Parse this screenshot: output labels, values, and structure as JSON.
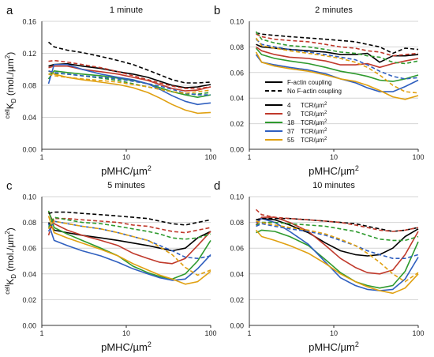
{
  "figure": {
    "y_label_super": "cell",
    "y_label_main": "K",
    "y_label_sub": "D",
    "y_label_units": " (mol./µm",
    "y_label_exp": "2",
    "y_label_close": ")",
    "x_label_main": "pMHC/µm",
    "x_label_exp": "2"
  },
  "legend": {
    "coupling": [
      {
        "label": "F-actin coupling",
        "style": "solid"
      },
      {
        "label": "No F-actin coupling",
        "style": "dashed"
      }
    ],
    "tcr": [
      {
        "value": "4",
        "color": "#000000"
      },
      {
        "value": "9",
        "color": "#c0392b"
      },
      {
        "value": "18",
        "color": "#2e9a2e"
      },
      {
        "value": "37",
        "color": "#2f5fbf"
      },
      {
        "value": "55",
        "color": "#e0a010"
      }
    ],
    "tcr_unit": "TCR/µm",
    "tcr_unit_exp": "2"
  },
  "chart_data": [
    {
      "type": "line",
      "letter": "a",
      "title": "1 minute",
      "xlim": [
        1,
        100
      ],
      "xscale": "log",
      "ylim": [
        0,
        0.16
      ],
      "xticks": [
        "1",
        "10",
        "100"
      ],
      "yticks": [
        "0.00",
        "0.04",
        "0.08",
        "0.12",
        "0.16"
      ],
      "x": [
        1.2,
        1.4,
        2,
        3,
        5,
        8,
        12,
        18,
        25,
        35,
        50,
        70,
        100
      ],
      "series": [
        {
          "tcr": "4",
          "coupling": "F-actin",
          "values": [
            0.104,
            0.106,
            0.107,
            0.104,
            0.101,
            0.097,
            0.094,
            0.09,
            0.085,
            0.08,
            0.077,
            0.078,
            0.081
          ]
        },
        {
          "tcr": "9",
          "coupling": "F-actin",
          "values": [
            0.102,
            0.104,
            0.104,
            0.1,
            0.097,
            0.094,
            0.09,
            0.086,
            0.081,
            0.076,
            0.073,
            0.074,
            0.078
          ]
        },
        {
          "tcr": "18",
          "coupling": "F-actin",
          "values": [
            0.088,
            0.098,
            0.096,
            0.094,
            0.092,
            0.089,
            0.086,
            0.082,
            0.077,
            0.072,
            0.068,
            0.065,
            0.068
          ]
        },
        {
          "tcr": "37",
          "coupling": "F-actin",
          "values": [
            0.082,
            0.106,
            0.106,
            0.1,
            0.094,
            0.09,
            0.087,
            0.082,
            0.075,
            0.067,
            0.06,
            0.056,
            0.058
          ]
        },
        {
          "tcr": "55",
          "coupling": "F-actin",
          "values": [
            0.098,
            0.094,
            0.09,
            0.087,
            0.084,
            0.081,
            0.077,
            0.071,
            0.064,
            0.056,
            0.049,
            0.045,
            0.046
          ]
        },
        {
          "tcr": "4",
          "coupling": "none",
          "values": [
            0.134,
            0.128,
            0.124,
            0.121,
            0.116,
            0.111,
            0.106,
            0.099,
            0.093,
            0.087,
            0.083,
            0.083,
            0.084
          ]
        },
        {
          "tcr": "9",
          "coupling": "none",
          "values": [
            0.11,
            0.111,
            0.109,
            0.106,
            0.102,
            0.097,
            0.092,
            0.087,
            0.083,
            0.079,
            0.076,
            0.076,
            0.078
          ]
        },
        {
          "tcr": "18",
          "coupling": "none",
          "values": [
            0.094,
            0.095,
            0.094,
            0.092,
            0.089,
            0.086,
            0.082,
            0.078,
            0.075,
            0.072,
            0.069,
            0.069,
            0.071
          ]
        },
        {
          "tcr": "37",
          "coupling": "none",
          "values": [
            0.098,
            0.096,
            0.094,
            0.092,
            0.09,
            0.088,
            0.085,
            0.082,
            0.079,
            0.075,
            0.07,
            0.068,
            0.068
          ]
        },
        {
          "tcr": "55",
          "coupling": "none",
          "values": [
            0.094,
            0.092,
            0.09,
            0.088,
            0.086,
            0.084,
            0.081,
            0.078,
            0.075,
            0.072,
            0.07,
            0.072,
            0.074
          ]
        }
      ]
    },
    {
      "type": "line",
      "letter": "b",
      "title": "2 minutes",
      "xlim": [
        1,
        100
      ],
      "xscale": "log",
      "ylim": [
        0,
        0.1
      ],
      "xticks": [
        "1",
        "10",
        "100"
      ],
      "yticks": [
        "0.00",
        "0.02",
        "0.04",
        "0.06",
        "0.08",
        "0.10"
      ],
      "x": [
        1.2,
        1.4,
        2,
        3,
        5,
        8,
        12,
        18,
        25,
        35,
        50,
        70,
        100
      ],
      "series": [
        {
          "tcr": "4",
          "coupling": "F-actin",
          "values": [
            0.082,
            0.08,
            0.079,
            0.078,
            0.077,
            0.076,
            0.074,
            0.074,
            0.075,
            0.068,
            0.073,
            0.073,
            0.074
          ]
        },
        {
          "tcr": "9",
          "coupling": "F-actin",
          "values": [
            0.08,
            0.077,
            0.074,
            0.072,
            0.071,
            0.069,
            0.066,
            0.066,
            0.067,
            0.064,
            0.067,
            0.069,
            0.071
          ]
        },
        {
          "tcr": "18",
          "coupling": "F-actin",
          "values": [
            0.079,
            0.074,
            0.071,
            0.069,
            0.067,
            0.064,
            0.061,
            0.059,
            0.057,
            0.054,
            0.053,
            0.055,
            0.058
          ]
        },
        {
          "tcr": "37",
          "coupling": "F-actin",
          "values": [
            0.074,
            0.068,
            0.066,
            0.064,
            0.062,
            0.059,
            0.055,
            0.052,
            0.048,
            0.045,
            0.045,
            0.049,
            0.054
          ]
        },
        {
          "tcr": "55",
          "coupling": "F-actin",
          "values": [
            0.076,
            0.068,
            0.065,
            0.063,
            0.061,
            0.058,
            0.055,
            0.053,
            0.05,
            0.046,
            0.041,
            0.039,
            0.042
          ]
        },
        {
          "tcr": "4",
          "coupling": "none",
          "values": [
            0.091,
            0.09,
            0.089,
            0.088,
            0.087,
            0.086,
            0.085,
            0.084,
            0.082,
            0.08,
            0.075,
            0.079,
            0.078
          ]
        },
        {
          "tcr": "9",
          "coupling": "none",
          "values": [
            0.09,
            0.088,
            0.086,
            0.085,
            0.084,
            0.082,
            0.08,
            0.079,
            0.077,
            0.076,
            0.073,
            0.074,
            0.075
          ]
        },
        {
          "tcr": "18",
          "coupling": "none",
          "values": [
            0.092,
            0.086,
            0.083,
            0.081,
            0.08,
            0.078,
            0.076,
            0.075,
            0.073,
            0.072,
            0.068,
            0.067,
            0.069
          ]
        },
        {
          "tcr": "37",
          "coupling": "none",
          "values": [
            0.086,
            0.082,
            0.08,
            0.078,
            0.076,
            0.074,
            0.072,
            0.07,
            0.066,
            0.061,
            0.057,
            0.055,
            0.056
          ]
        },
        {
          "tcr": "55",
          "coupling": "none",
          "values": [
            0.087,
            0.081,
            0.079,
            0.077,
            0.075,
            0.073,
            0.071,
            0.068,
            0.064,
            0.058,
            0.05,
            0.045,
            0.044
          ]
        }
      ]
    },
    {
      "type": "line",
      "letter": "c",
      "title": "5 minutes",
      "xlim": [
        1,
        100
      ],
      "xscale": "log",
      "ylim": [
        0,
        0.1
      ],
      "xticks": [
        "1",
        "10",
        "100"
      ],
      "yticks": [
        "0.00",
        "0.02",
        "0.04",
        "0.06",
        "0.08",
        "0.10"
      ],
      "x": [
        1.2,
        1.4,
        2,
        3,
        5,
        8,
        12,
        18,
        25,
        35,
        50,
        70,
        100
      ],
      "series": [
        {
          "tcr": "4",
          "coupling": "F-actin",
          "values": [
            0.08,
            0.074,
            0.072,
            0.07,
            0.068,
            0.066,
            0.064,
            0.062,
            0.06,
            0.058,
            0.06,
            0.068,
            0.073
          ]
        },
        {
          "tcr": "9",
          "coupling": "F-actin",
          "values": [
            0.088,
            0.079,
            0.074,
            0.07,
            0.066,
            0.062,
            0.056,
            0.052,
            0.049,
            0.048,
            0.052,
            0.062,
            0.073
          ]
        },
        {
          "tcr": "18",
          "coupling": "F-actin",
          "values": [
            0.089,
            0.076,
            0.071,
            0.066,
            0.06,
            0.054,
            0.046,
            0.041,
            0.038,
            0.036,
            0.04,
            0.05,
            0.066
          ]
        },
        {
          "tcr": "37",
          "coupling": "F-actin",
          "values": [
            0.079,
            0.066,
            0.062,
            0.058,
            0.054,
            0.049,
            0.044,
            0.04,
            0.037,
            0.035,
            0.036,
            0.044,
            0.055
          ]
        },
        {
          "tcr": "55",
          "coupling": "F-actin",
          "values": [
            0.085,
            0.072,
            0.068,
            0.064,
            0.059,
            0.054,
            0.048,
            0.043,
            0.039,
            0.036,
            0.032,
            0.034,
            0.042
          ]
        },
        {
          "tcr": "4",
          "coupling": "none",
          "values": [
            0.087,
            0.088,
            0.088,
            0.087,
            0.086,
            0.085,
            0.084,
            0.083,
            0.081,
            0.079,
            0.078,
            0.08,
            0.082
          ]
        },
        {
          "tcr": "9",
          "coupling": "none",
          "values": [
            0.07,
            0.083,
            0.083,
            0.082,
            0.081,
            0.08,
            0.078,
            0.077,
            0.075,
            0.073,
            0.072,
            0.074,
            0.076
          ]
        },
        {
          "tcr": "18",
          "coupling": "none",
          "values": [
            0.076,
            0.084,
            0.082,
            0.08,
            0.079,
            0.077,
            0.075,
            0.073,
            0.071,
            0.068,
            0.067,
            0.068,
            0.071
          ]
        },
        {
          "tcr": "37",
          "coupling": "none",
          "values": [
            0.073,
            0.081,
            0.079,
            0.077,
            0.075,
            0.072,
            0.069,
            0.066,
            0.062,
            0.058,
            0.053,
            0.052,
            0.054
          ]
        },
        {
          "tcr": "55",
          "coupling": "none",
          "values": [
            0.075,
            0.081,
            0.079,
            0.077,
            0.075,
            0.072,
            0.069,
            0.066,
            0.061,
            0.055,
            0.045,
            0.039,
            0.043
          ]
        }
      ]
    },
    {
      "type": "line",
      "letter": "d",
      "title": "10 minutes",
      "xlim": [
        1,
        100
      ],
      "xscale": "log",
      "ylim": [
        0,
        0.1
      ],
      "xticks": [
        "1",
        "10",
        "100"
      ],
      "yticks": [
        "0.00",
        "0.02",
        "0.04",
        "0.06",
        "0.08",
        "0.10"
      ],
      "x": [
        1.2,
        1.4,
        2,
        3,
        5,
        8,
        12,
        18,
        25,
        35,
        50,
        70,
        100
      ],
      "series": [
        {
          "tcr": "4",
          "coupling": "F-actin",
          "values": [
            0.082,
            0.083,
            0.082,
            0.078,
            0.072,
            0.064,
            0.058,
            0.055,
            0.054,
            0.055,
            0.06,
            0.069,
            0.075
          ]
        },
        {
          "tcr": "9",
          "coupling": "F-actin",
          "values": [
            0.078,
            0.084,
            0.084,
            0.08,
            0.073,
            0.062,
            0.052,
            0.045,
            0.041,
            0.04,
            0.043,
            0.055,
            0.073
          ]
        },
        {
          "tcr": "18",
          "coupling": "F-actin",
          "values": [
            0.072,
            0.074,
            0.073,
            0.069,
            0.062,
            0.051,
            0.041,
            0.034,
            0.031,
            0.029,
            0.031,
            0.042,
            0.065
          ]
        },
        {
          "tcr": "37",
          "coupling": "F-actin",
          "values": [
            0.08,
            0.083,
            0.08,
            0.073,
            0.063,
            0.049,
            0.037,
            0.031,
            0.028,
            0.027,
            0.028,
            0.036,
            0.053
          ]
        },
        {
          "tcr": "55",
          "coupling": "F-actin",
          "values": [
            0.074,
            0.069,
            0.066,
            0.062,
            0.056,
            0.048,
            0.04,
            0.034,
            0.03,
            0.027,
            0.025,
            0.029,
            0.04
          ]
        },
        {
          "tcr": "4",
          "coupling": "none",
          "values": [
            0.082,
            0.083,
            0.083,
            0.083,
            0.082,
            0.081,
            0.08,
            0.079,
            0.077,
            0.075,
            0.073,
            0.074,
            0.076
          ]
        },
        {
          "tcr": "9",
          "coupling": "none",
          "values": [
            0.09,
            0.086,
            0.084,
            0.083,
            0.082,
            0.081,
            0.08,
            0.078,
            0.076,
            0.074,
            0.073,
            0.074,
            0.076
          ]
        },
        {
          "tcr": "18",
          "coupling": "none",
          "values": [
            0.078,
            0.08,
            0.08,
            0.079,
            0.078,
            0.077,
            0.075,
            0.073,
            0.07,
            0.067,
            0.066,
            0.066,
            0.069
          ]
        },
        {
          "tcr": "37",
          "coupling": "none",
          "values": [
            0.077,
            0.079,
            0.077,
            0.075,
            0.073,
            0.07,
            0.066,
            0.062,
            0.058,
            0.055,
            0.052,
            0.052,
            0.055
          ]
        },
        {
          "tcr": "55",
          "coupling": "none",
          "values": [
            0.081,
            0.08,
            0.078,
            0.076,
            0.074,
            0.071,
            0.067,
            0.062,
            0.056,
            0.049,
            0.04,
            0.034,
            0.041
          ]
        }
      ]
    }
  ]
}
